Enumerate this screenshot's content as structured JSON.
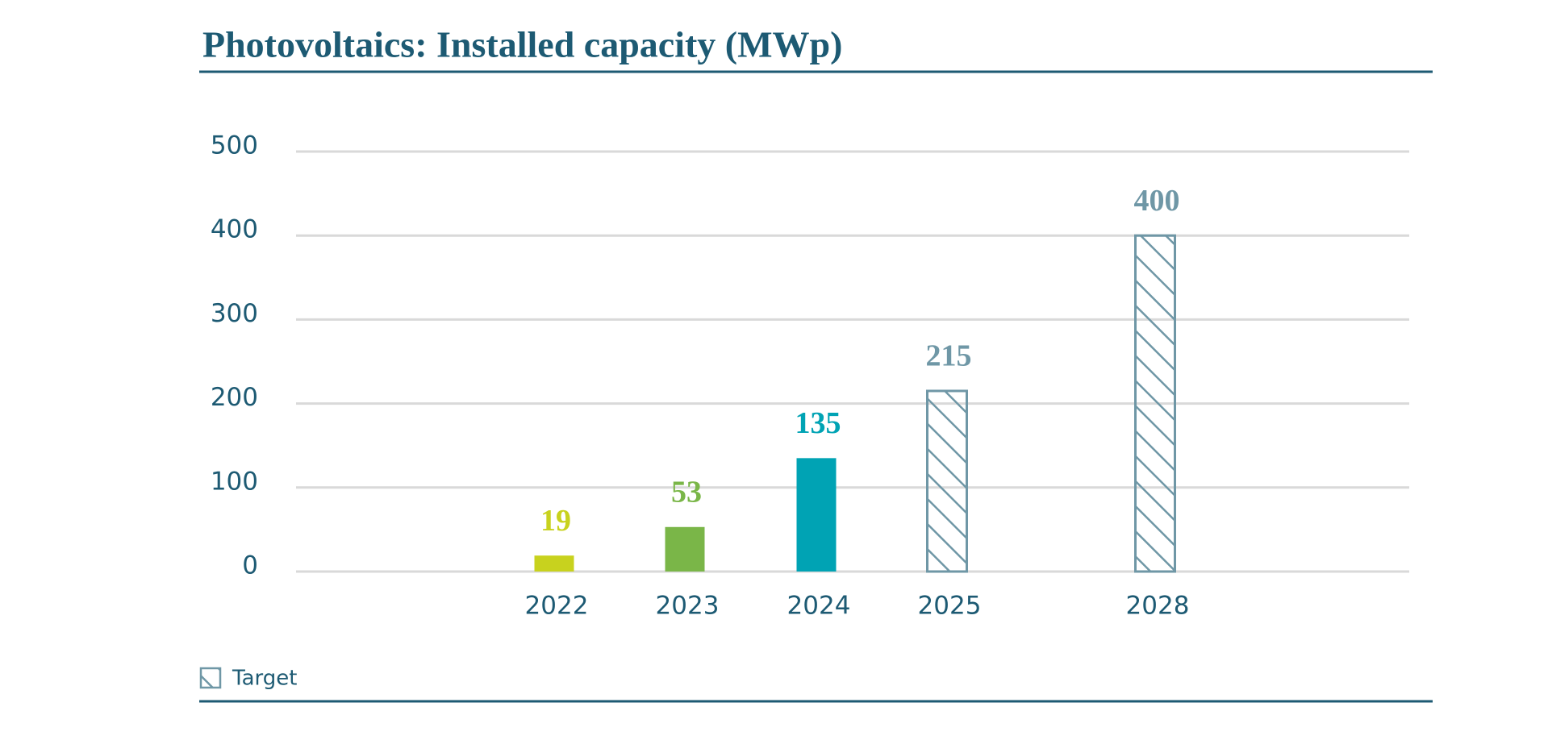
{
  "chart_data": {
    "type": "bar",
    "title": "Photovoltaics: Installed capacity (MWp)",
    "categories": [
      "2022",
      "2023",
      "2024",
      "2025",
      "2028"
    ],
    "values": [
      19,
      53,
      135,
      215,
      400
    ],
    "colors": [
      "#c8d21e",
      "#7ab648",
      "#00a3b4",
      "#6f97a6",
      "#6f97a6"
    ],
    "hatched": [
      false,
      false,
      false,
      true,
      true
    ],
    "legend": {
      "label": "Target",
      "color": "#6f97a6"
    },
    "ylim": [
      0,
      500
    ],
    "yticks": [
      0,
      100,
      200,
      300,
      400,
      500
    ],
    "grid": true
  }
}
